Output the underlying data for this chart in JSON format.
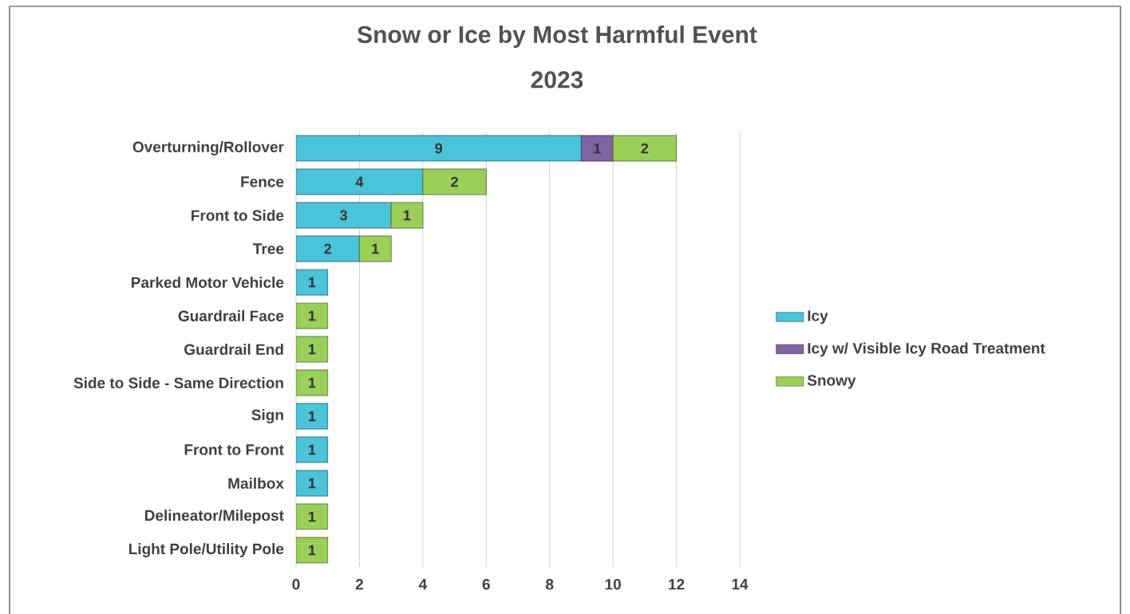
{
  "chart_data": {
    "type": "bar",
    "orientation": "horizontal",
    "stacked": true,
    "title": "Snow or Ice by Most Harmful Event",
    "subtitle": "2023",
    "categories": [
      "Overturning/Rollover",
      "Fence",
      "Front to Side",
      "Tree",
      "Parked Motor Vehicle",
      "Guardrail Face",
      "Guardrail End",
      "Side to Side - Same Direction",
      "Sign",
      "Front to Front",
      "Mailbox",
      "Delineator/Milepost",
      "Light Pole/Utility Pole"
    ],
    "series": [
      {
        "name": "Icy",
        "color": "#4bc3d9",
        "values": [
          9,
          4,
          3,
          2,
          1,
          null,
          null,
          null,
          1,
          1,
          1,
          null,
          null
        ]
      },
      {
        "name": "Icy w/ Visible Icy Road Treatment",
        "color": "#8064a2",
        "values": [
          1,
          null,
          null,
          null,
          null,
          null,
          null,
          null,
          null,
          null,
          null,
          null,
          null
        ]
      },
      {
        "name": "Snowy",
        "color": "#9bcf5a",
        "values": [
          2,
          2,
          1,
          1,
          null,
          1,
          1,
          1,
          null,
          null,
          null,
          1,
          1
        ]
      }
    ],
    "xlim": [
      0,
      14
    ],
    "xticks": [
      0,
      2,
      4,
      6,
      8,
      10,
      12,
      14
    ],
    "grid": "x",
    "legend": "right",
    "data_labels": true
  }
}
